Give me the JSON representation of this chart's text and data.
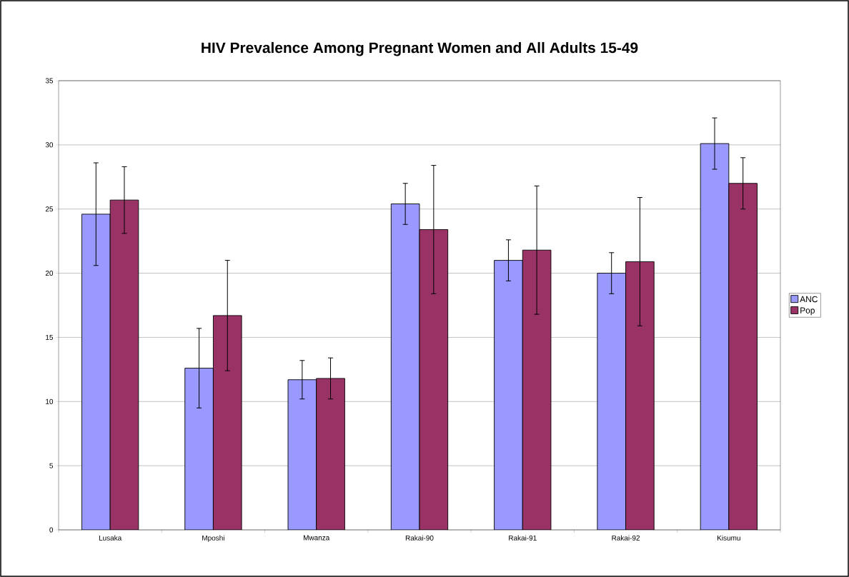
{
  "chart_data": {
    "type": "bar",
    "title": "HIV Prevalence Among Pregnant Women and All Adults 15-49",
    "categories": [
      "Lusaka",
      "Mposhi",
      "Mwanza",
      "Rakai-90",
      "Rakai-91",
      "Rakai-92",
      "Kisumu"
    ],
    "series": [
      {
        "name": "ANC",
        "color": "#9999ff",
        "values": [
          24.6,
          12.6,
          11.7,
          25.4,
          21.0,
          20.0,
          30.1
        ],
        "errors": [
          4.0,
          3.1,
          1.5,
          1.6,
          1.6,
          1.6,
          2.0
        ]
      },
      {
        "name": "Pop",
        "color": "#993366",
        "values": [
          25.7,
          16.7,
          11.8,
          23.4,
          21.8,
          20.9,
          27.0
        ],
        "errors": [
          2.6,
          4.3,
          1.6,
          5.0,
          5.0,
          5.0,
          2.0
        ]
      }
    ],
    "ylim": [
      0,
      35
    ],
    "yticks": [
      0,
      5,
      10,
      15,
      20,
      25,
      30,
      35
    ],
    "grid": "y",
    "legend": "right"
  }
}
